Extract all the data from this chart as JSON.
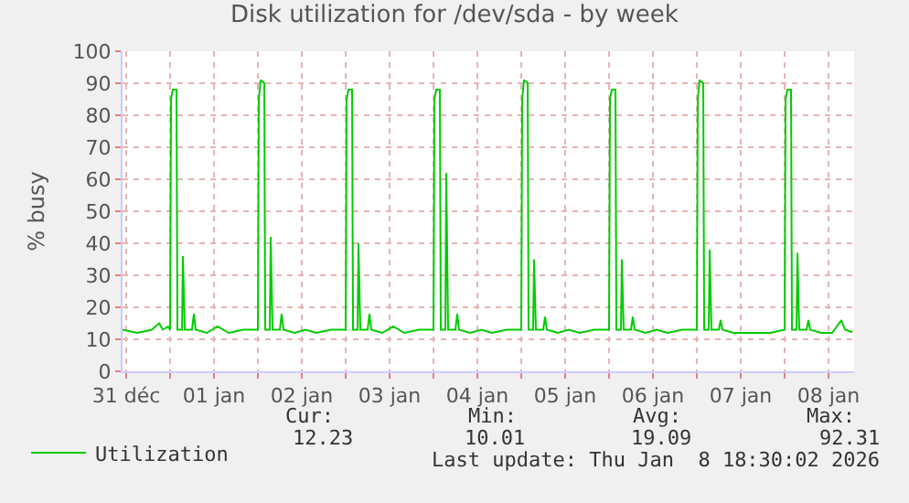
{
  "chart_data": {
    "type": "line",
    "title": "Disk utilization for /dev/sda - by week",
    "ylabel": "% busy",
    "x": [
      "2025-12-31T11:00",
      "2025-12-31T15:00",
      "2025-12-31T19:00",
      "2025-12-31T21:00",
      "2025-12-31T22:00",
      "2025-12-31T23:30",
      "2026-01-01T00:00",
      "2026-01-01T00:15",
      "2026-01-01T00:45",
      "2026-01-01T01:45",
      "2026-01-01T02:00",
      "2026-01-01T03:15",
      "2026-01-01T03:30",
      "2026-01-01T04:00",
      "2026-01-01T06:00",
      "2026-01-01T06:30",
      "2026-01-01T07:00",
      "2026-01-01T10:00",
      "2026-01-01T13:00",
      "2026-01-01T16:00",
      "2026-01-01T20:00",
      "2026-01-02T00:00",
      "2026-01-02T00:15",
      "2026-01-02T00:45",
      "2026-01-02T01:45",
      "2026-01-02T02:00",
      "2026-01-02T03:15",
      "2026-01-02T03:30",
      "2026-01-02T04:00",
      "2026-01-02T06:00",
      "2026-01-02T06:30",
      "2026-01-02T07:00",
      "2026-01-02T10:00",
      "2026-01-02T13:00",
      "2026-01-02T16:00",
      "2026-01-02T20:00",
      "2026-01-03T00:00",
      "2026-01-03T00:15",
      "2026-01-03T00:45",
      "2026-01-03T01:45",
      "2026-01-03T02:00",
      "2026-01-03T03:15",
      "2026-01-03T03:30",
      "2026-01-03T04:00",
      "2026-01-03T06:00",
      "2026-01-03T06:30",
      "2026-01-03T07:00",
      "2026-01-03T10:00",
      "2026-01-03T13:00",
      "2026-01-03T16:00",
      "2026-01-03T20:00",
      "2026-01-04T00:00",
      "2026-01-04T00:15",
      "2026-01-04T00:45",
      "2026-01-04T01:45",
      "2026-01-04T02:00",
      "2026-01-04T03:15",
      "2026-01-04T03:30",
      "2026-01-04T04:00",
      "2026-01-04T06:00",
      "2026-01-04T06:30",
      "2026-01-04T07:00",
      "2026-01-04T10:00",
      "2026-01-04T13:00",
      "2026-01-04T16:00",
      "2026-01-04T20:00",
      "2026-01-05T00:00",
      "2026-01-05T00:15",
      "2026-01-05T00:45",
      "2026-01-05T01:45",
      "2026-01-05T02:00",
      "2026-01-05T03:15",
      "2026-01-05T03:30",
      "2026-01-05T04:00",
      "2026-01-05T06:00",
      "2026-01-05T06:30",
      "2026-01-05T07:00",
      "2026-01-05T10:00",
      "2026-01-05T13:00",
      "2026-01-05T16:00",
      "2026-01-05T20:00",
      "2026-01-06T00:00",
      "2026-01-06T00:15",
      "2026-01-06T00:45",
      "2026-01-06T01:45",
      "2026-01-06T02:00",
      "2026-01-06T03:15",
      "2026-01-06T03:30",
      "2026-01-06T04:00",
      "2026-01-06T06:00",
      "2026-01-06T06:30",
      "2026-01-06T07:00",
      "2026-01-06T10:00",
      "2026-01-06T13:00",
      "2026-01-06T16:00",
      "2026-01-06T20:00",
      "2026-01-07T00:00",
      "2026-01-07T00:15",
      "2026-01-07T00:45",
      "2026-01-07T01:45",
      "2026-01-07T02:00",
      "2026-01-07T03:15",
      "2026-01-07T03:30",
      "2026-01-07T04:00",
      "2026-01-07T06:00",
      "2026-01-07T06:30",
      "2026-01-07T07:00",
      "2026-01-07T10:00",
      "2026-01-07T13:00",
      "2026-01-07T16:00",
      "2026-01-07T20:00",
      "2026-01-08T00:00",
      "2026-01-08T00:15",
      "2026-01-08T00:45",
      "2026-01-08T01:45",
      "2026-01-08T02:00",
      "2026-01-08T03:15",
      "2026-01-08T03:30",
      "2026-01-08T04:00",
      "2026-01-08T06:00",
      "2026-01-08T06:30",
      "2026-01-08T07:00",
      "2026-01-08T10:00",
      "2026-01-08T13:00",
      "2026-01-08T15:30",
      "2026-01-08T16:30",
      "2026-01-08T18:30"
    ],
    "series": [
      {
        "name": "Utilization",
        "color": "#00cc00",
        "values": [
          13,
          12,
          13,
          15,
          13,
          14,
          13,
          85,
          88,
          88,
          13,
          13,
          36,
          13,
          13,
          18,
          13,
          12,
          14,
          12,
          13,
          13,
          85,
          91,
          90,
          13,
          13,
          42,
          13,
          13,
          18,
          13,
          12,
          13,
          12,
          13,
          13,
          85,
          88,
          88,
          13,
          13,
          40,
          13,
          13,
          18,
          13,
          12,
          14,
          12,
          13,
          13,
          85,
          88,
          88,
          13,
          13,
          62,
          13,
          13,
          18,
          13,
          12,
          13,
          12,
          13,
          13,
          85,
          91,
          90,
          13,
          13,
          35,
          13,
          13,
          17,
          13,
          12,
          13,
          12,
          13,
          13,
          85,
          88,
          88,
          13,
          13,
          35,
          13,
          13,
          17,
          13,
          12,
          13,
          12,
          13,
          13,
          85,
          91,
          90,
          13,
          13,
          38,
          13,
          13,
          16,
          13,
          12,
          12,
          12,
          12,
          13,
          85,
          88,
          88,
          13,
          13,
          37,
          13,
          13,
          16,
          13,
          12,
          12,
          16,
          13,
          12.23
        ]
      }
    ],
    "xlim": [
      "2025-12-31T11:00",
      "2026-01-08T19:00"
    ],
    "xticks": [
      {
        "value": "2025-12-31T12:00",
        "label": "31 déc"
      },
      {
        "value": "2026-01-01T00:00",
        "label": null
      },
      {
        "value": "2026-01-01T12:00",
        "label": "01 jan"
      },
      {
        "value": "2026-01-02T00:00",
        "label": null
      },
      {
        "value": "2026-01-02T12:00",
        "label": "02 jan"
      },
      {
        "value": "2026-01-03T00:00",
        "label": null
      },
      {
        "value": "2026-01-03T12:00",
        "label": "03 jan"
      },
      {
        "value": "2026-01-04T00:00",
        "label": null
      },
      {
        "value": "2026-01-04T12:00",
        "label": "04 jan"
      },
      {
        "value": "2026-01-05T00:00",
        "label": null
      },
      {
        "value": "2026-01-05T12:00",
        "label": "05 jan"
      },
      {
        "value": "2026-01-06T00:00",
        "label": null
      },
      {
        "value": "2026-01-06T12:00",
        "label": "06 jan"
      },
      {
        "value": "2026-01-07T00:00",
        "label": null
      },
      {
        "value": "2026-01-07T12:00",
        "label": "07 jan"
      },
      {
        "value": "2026-01-08T00:00",
        "label": null
      },
      {
        "value": "2026-01-08T12:00",
        "label": "08 jan"
      }
    ],
    "ylim": [
      0,
      100
    ],
    "yticks": [
      0,
      10,
      20,
      30,
      40,
      50,
      60,
      70,
      80,
      90,
      100
    ],
    "grid": true,
    "legend": "bottom",
    "marker": "none",
    "line_style": "solid",
    "annotations": [
      "Cur:",
      "Min:",
      "Avg:",
      "Max:",
      "12.23",
      "10.01",
      "19.09",
      "92.31",
      "Last update: Thu Jan  8 18:30:02 2026"
    ]
  }
}
